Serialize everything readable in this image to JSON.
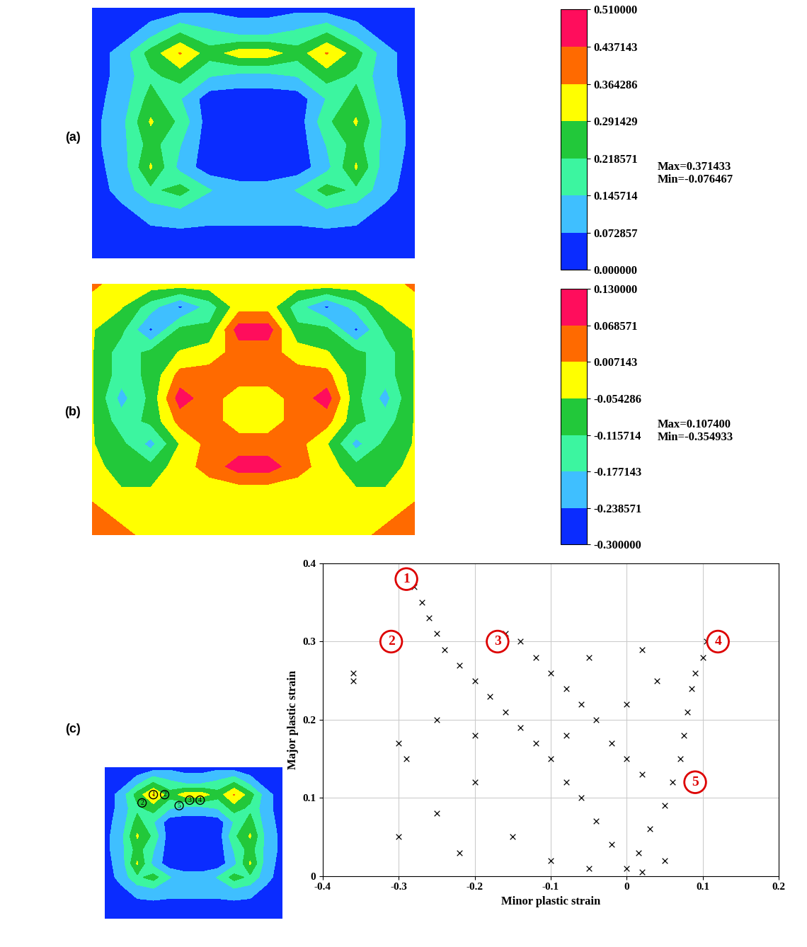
{
  "chart_data": [
    {
      "type": "contour",
      "label": "(a)",
      "annotations": [
        "Max=0.371433",
        "Min=-0.076467"
      ],
      "colorbar_range": [
        0,
        0.51
      ],
      "colorbar_ticks": [
        {
          "value": 0,
          "label": "0.000000"
        },
        {
          "value": 0.072857,
          "label": "0.072857"
        },
        {
          "value": 0.145714,
          "label": "0.145714"
        },
        {
          "value": 0.218571,
          "label": "0.218571"
        },
        {
          "value": 0.291429,
          "label": "0.291429"
        },
        {
          "value": 0.364286,
          "label": "0.364286"
        },
        {
          "value": 0.437143,
          "label": "0.437143"
        },
        {
          "value": 0.51,
          "label": "0.510000"
        }
      ],
      "colors": [
        "#0a2cff",
        "#3fbfff",
        "#3cf5a0",
        "#22c83a",
        "#ffff00",
        "#ff6a00",
        "#ff0d5c"
      ],
      "cells": [
        [
          0.03,
          0.03,
          0.03,
          0.03,
          0.05,
          0.05,
          0.05,
          0.05,
          0.03,
          0.03,
          0.03,
          0.03
        ],
        [
          0.03,
          0.03,
          0.1,
          0.2,
          0.15,
          0.1,
          0.1,
          0.15,
          0.2,
          0.1,
          0.03,
          0.03
        ],
        [
          0.03,
          0.1,
          0.25,
          0.37,
          0.25,
          0.33,
          0.33,
          0.25,
          0.37,
          0.25,
          0.1,
          0.03
        ],
        [
          0.03,
          0.1,
          0.2,
          0.25,
          0.15,
          0.12,
          0.12,
          0.15,
          0.25,
          0.2,
          0.1,
          0.03
        ],
        [
          0.05,
          0.1,
          0.25,
          0.15,
          0.03,
          0.03,
          0.03,
          0.03,
          0.15,
          0.25,
          0.1,
          0.05
        ],
        [
          0.05,
          0.12,
          0.3,
          0.2,
          0.03,
          0.03,
          0.03,
          0.03,
          0.2,
          0.3,
          0.12,
          0.05
        ],
        [
          0.05,
          0.12,
          0.25,
          0.15,
          0.03,
          0.03,
          0.03,
          0.03,
          0.15,
          0.25,
          0.12,
          0.05
        ],
        [
          0.05,
          0.1,
          0.3,
          0.12,
          0.03,
          0.03,
          0.03,
          0.03,
          0.12,
          0.3,
          0.1,
          0.05
        ],
        [
          0.03,
          0.1,
          0.2,
          0.25,
          0.15,
          0.1,
          0.1,
          0.15,
          0.25,
          0.2,
          0.1,
          0.03
        ],
        [
          0.03,
          0.05,
          0.1,
          0.12,
          0.1,
          0.1,
          0.1,
          0.1,
          0.12,
          0.1,
          0.05,
          0.03
        ],
        [
          0.03,
          0.03,
          0.05,
          0.05,
          0.05,
          0.05,
          0.05,
          0.05,
          0.05,
          0.05,
          0.03,
          0.03
        ],
        [
          0.03,
          0.03,
          0.03,
          0.03,
          0.03,
          0.03,
          0.03,
          0.03,
          0.03,
          0.03,
          0.03,
          0.03
        ]
      ]
    },
    {
      "type": "contour",
      "label": "(b)",
      "annotations": [
        "Max=0.107400",
        "Min=-0.354933"
      ],
      "colorbar_range": [
        -0.3,
        0.13
      ],
      "colorbar_ticks": [
        {
          "value": -0.3,
          "label": "-0.300000"
        },
        {
          "value": -0.238571,
          "label": "-0.238571"
        },
        {
          "value": -0.177143,
          "label": "-0.177143"
        },
        {
          "value": -0.115714,
          "label": "-0.115714"
        },
        {
          "value": -0.054286,
          "label": "-0.054286"
        },
        {
          "value": 0.007143,
          "label": "0.007143"
        },
        {
          "value": 0.068571,
          "label": "0.068571"
        },
        {
          "value": 0.13,
          "label": "0.130000"
        }
      ],
      "colors": [
        "#0a2cff",
        "#3fbfff",
        "#3cf5a0",
        "#22c83a",
        "#ffff00",
        "#ff6a00",
        "#ff0d5c"
      ],
      "cells": [
        [
          0.02,
          -0.02,
          -0.02,
          -0.02,
          -0.02,
          -0.02,
          -0.02,
          -0.02,
          -0.02,
          -0.02,
          -0.02,
          0.02
        ],
        [
          -0.02,
          -0.05,
          -0.15,
          -0.25,
          -0.15,
          -0.02,
          -0.02,
          -0.15,
          -0.25,
          -0.15,
          -0.05,
          -0.02
        ],
        [
          -0.05,
          -0.1,
          -0.25,
          -0.1,
          -0.1,
          0.1,
          0.1,
          -0.1,
          -0.1,
          -0.25,
          -0.1,
          -0.05
        ],
        [
          -0.05,
          -0.15,
          -0.1,
          -0.05,
          -0.02,
          0.03,
          0.03,
          -0.02,
          -0.05,
          -0.1,
          -0.15,
          -0.05
        ],
        [
          -0.05,
          -0.15,
          -0.1,
          0.03,
          0.03,
          0.03,
          0.03,
          0.03,
          0.03,
          -0.1,
          -0.15,
          -0.05
        ],
        [
          -0.05,
          -0.2,
          -0.1,
          0.1,
          0.03,
          -0.02,
          -0.02,
          0.03,
          0.1,
          -0.1,
          -0.2,
          -0.05
        ],
        [
          -0.05,
          -0.15,
          -0.1,
          0.03,
          0.03,
          -0.02,
          -0.02,
          0.03,
          0.03,
          -0.1,
          -0.15,
          -0.05
        ],
        [
          -0.05,
          -0.1,
          -0.2,
          -0.05,
          0.03,
          0.03,
          0.03,
          0.03,
          -0.05,
          -0.2,
          -0.1,
          -0.05
        ],
        [
          -0.02,
          -0.1,
          -0.1,
          -0.02,
          0.03,
          0.1,
          0.1,
          0.03,
          -0.02,
          -0.1,
          -0.1,
          -0.02
        ],
        [
          -0.02,
          -0.05,
          -0.05,
          -0.05,
          -0.02,
          -0.02,
          -0.02,
          -0.02,
          -0.05,
          -0.05,
          -0.05,
          -0.02
        ],
        [
          0.03,
          -0.02,
          -0.02,
          -0.02,
          -0.02,
          -0.02,
          -0.02,
          -0.02,
          -0.02,
          -0.02,
          -0.02,
          0.03
        ],
        [
          0.03,
          0.03,
          -0.02,
          -0.02,
          -0.02,
          -0.02,
          -0.02,
          -0.02,
          -0.02,
          -0.02,
          0.03,
          0.03
        ]
      ]
    },
    {
      "type": "scatter",
      "label": "(c)",
      "xlabel": "Minor plastic strain",
      "ylabel": "Major plastic strain",
      "xlim": [
        -0.4,
        0.2
      ],
      "ylim": [
        0,
        0.4
      ],
      "xticks": [
        -0.4,
        -0.3,
        -0.2,
        -0.1,
        0,
        0.1,
        0.2
      ],
      "yticks": [
        0,
        0.1,
        0.2,
        0.3,
        0.4
      ],
      "grid": true,
      "marker": "x",
      "color": "#000000",
      "x": [
        -0.28,
        -0.27,
        -0.26,
        -0.25,
        -0.24,
        -0.22,
        -0.2,
        -0.18,
        -0.16,
        -0.14,
        -0.12,
        -0.1,
        -0.08,
        -0.06,
        -0.04,
        -0.02,
        0,
        -0.16,
        -0.14,
        -0.12,
        -0.1,
        -0.08,
        -0.06,
        -0.04,
        -0.02,
        0,
        0.02,
        0.105,
        0.1,
        0.09,
        0.085,
        0.08,
        0.075,
        0.07,
        0.06,
        0.05,
        0.03,
        0.015,
        -0.05,
        0.02,
        0.04,
        0,
        -0.08,
        -0.2,
        -0.25,
        -0.3,
        -0.22,
        -0.15,
        -0.1,
        -0.05,
        0.02,
        -0.36,
        -0.36,
        -0.3,
        -0.29,
        0.05,
        -0.25,
        -0.2
      ],
      "values": [
        0.37,
        0.35,
        0.33,
        0.31,
        0.29,
        0.27,
        0.25,
        0.23,
        0.21,
        0.19,
        0.17,
        0.15,
        0.12,
        0.1,
        0.07,
        0.04,
        0.01,
        0.31,
        0.3,
        0.28,
        0.26,
        0.24,
        0.22,
        0.2,
        0.17,
        0.15,
        0.13,
        0.3,
        0.28,
        0.26,
        0.24,
        0.21,
        0.18,
        0.15,
        0.12,
        0.09,
        0.06,
        0.03,
        0.28,
        0.29,
        0.25,
        0.22,
        0.18,
        0.12,
        0.08,
        0.05,
        0.03,
        0.05,
        0.02,
        0.01,
        0.005,
        0.25,
        0.26,
        0.17,
        0.15,
        0.02,
        0.2,
        0.18
      ],
      "callouts": [
        {
          "label": "1",
          "x": -0.29,
          "y": 0.38
        },
        {
          "label": "2",
          "x": -0.31,
          "y": 0.3
        },
        {
          "label": "3",
          "x": -0.17,
          "y": 0.3
        },
        {
          "label": "4",
          "x": 0.12,
          "y": 0.3
        },
        {
          "label": "5",
          "x": 0.09,
          "y": 0.12
        }
      ],
      "inset_markers": [
        {
          "label": "2",
          "col": 2.3,
          "row": 2.6
        },
        {
          "label": "1",
          "col": 3.0,
          "row": 2.0
        },
        {
          "label": "2",
          "col": 3.7,
          "row": 2.0
        },
        {
          "label": "5",
          "col": 4.6,
          "row": 2.8
        },
        {
          "label": "3",
          "col": 5.25,
          "row": 2.4
        },
        {
          "label": "4",
          "col": 5.9,
          "row": 2.4
        }
      ]
    }
  ]
}
